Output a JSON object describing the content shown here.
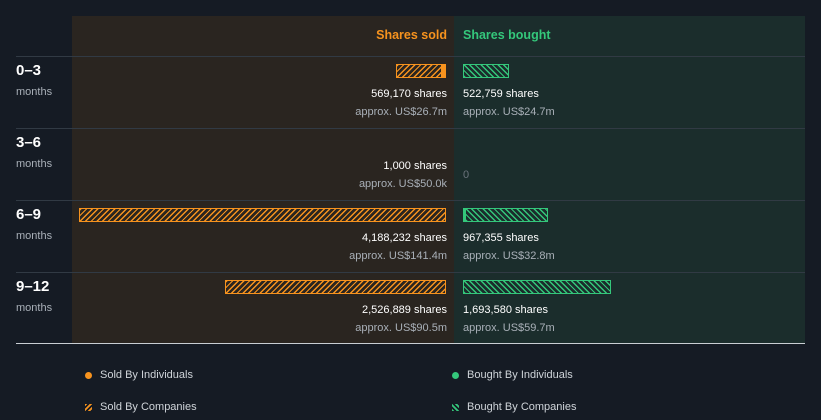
{
  "headers": {
    "sold": "Shares sold",
    "bought": "Shares bought"
  },
  "colors": {
    "sold": "#f7931e",
    "bought": "#34c77b",
    "sold_panel": "#2a2520",
    "bought_panel": "#1b2d2c",
    "background": "#151b24"
  },
  "chart_data": {
    "type": "bar",
    "orientation": "horizontal",
    "title": "",
    "categories": [
      "0–3",
      "3–6",
      "6–9",
      "9–12"
    ],
    "category_unit": "months",
    "rows": [
      {
        "period": "0–3",
        "unit": "months",
        "sold": {
          "shares": 569170,
          "shares_label": "569,170 shares",
          "value_label": "approx. US$26.7m",
          "individuals_fraction": 0.08
        },
        "bought": {
          "shares": 522759,
          "shares_label": "522,759 shares",
          "value_label": "approx. US$24.7m",
          "individuals_fraction": 0.0
        }
      },
      {
        "period": "3–6",
        "unit": "months",
        "sold": {
          "shares": 1000,
          "shares_label": "1,000 shares",
          "value_label": "approx. US$50.0k",
          "individuals_fraction": 0.0
        },
        "bought": {
          "shares": 0,
          "shares_label": "0",
          "value_label": "",
          "individuals_fraction": 0.0
        }
      },
      {
        "period": "6–9",
        "unit": "months",
        "sold": {
          "shares": 4188232,
          "shares_label": "4,188,232 shares",
          "value_label": "approx. US$141.4m",
          "individuals_fraction": 0.0
        },
        "bought": {
          "shares": 967355,
          "shares_label": "967,355 shares",
          "value_label": "approx. US$32.8m",
          "individuals_fraction": 0.02
        }
      },
      {
        "period": "9–12",
        "unit": "months",
        "sold": {
          "shares": 2526889,
          "shares_label": "2,526,889 shares",
          "value_label": "approx. US$90.5m",
          "individuals_fraction": 0.0
        },
        "bought": {
          "shares": 1693580,
          "shares_label": "1,693,580 shares",
          "value_label": "approx. US$59.7m",
          "individuals_fraction": 0.0
        }
      }
    ],
    "legend": [
      {
        "label": "Sold By Individuals",
        "style": "solid",
        "side": "sold"
      },
      {
        "label": "Bought By Individuals",
        "style": "solid",
        "side": "bought"
      },
      {
        "label": "Sold By Companies",
        "style": "hatched",
        "side": "sold"
      },
      {
        "label": "Bought By Companies",
        "style": "hatched",
        "side": "bought"
      }
    ],
    "legend_position": "bottom"
  }
}
